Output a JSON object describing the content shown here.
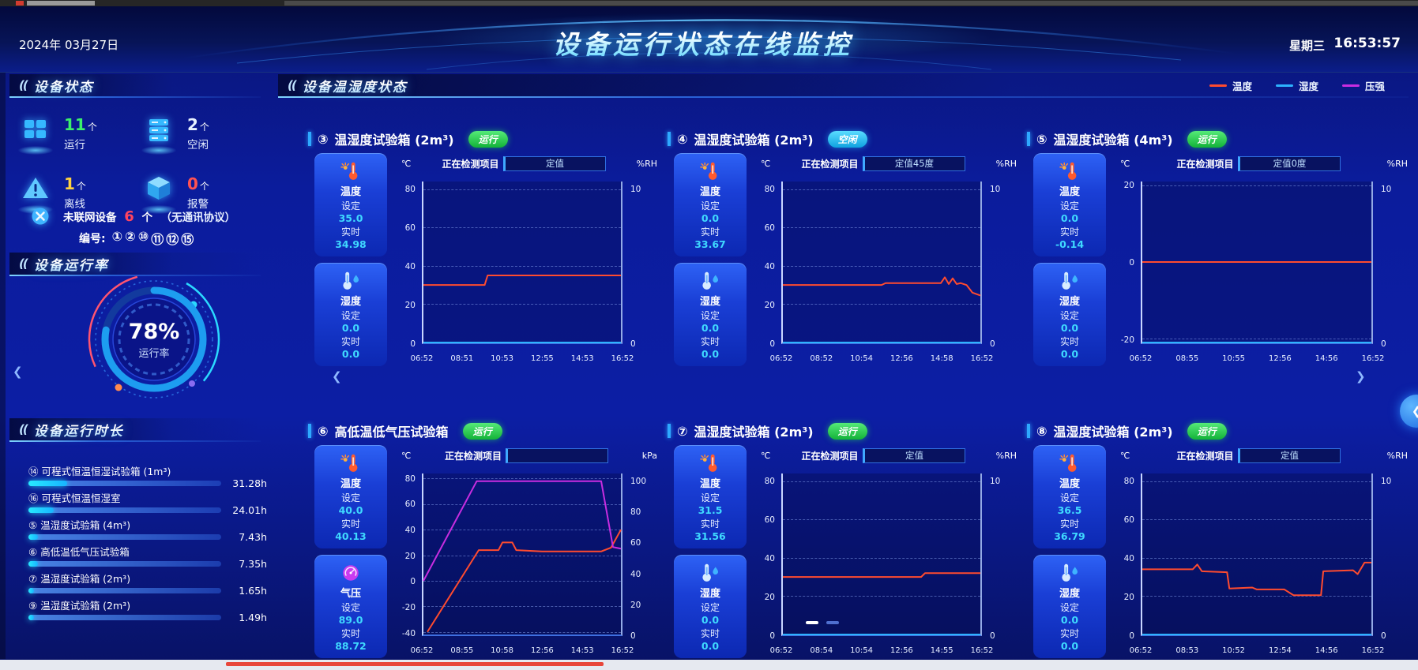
{
  "ui": {
    "section_deco": "((",
    "set_label": "设定",
    "rt_label": "实时",
    "detect_label": "正在检测项目"
  },
  "header": {
    "date": "2024年 03月27日",
    "title": "设备运行状态在线监控",
    "weekday": "星期三",
    "time": "16:53:57"
  },
  "legend": [
    {
      "label": "温度",
      "color": "#ff4b2f"
    },
    {
      "label": "湿度",
      "color": "#2db2ff"
    },
    {
      "label": "压强",
      "color": "#c82de0"
    }
  ],
  "nav": {
    "prev": "❮",
    "next": "❯"
  },
  "sidebar": {
    "status_title": "设备状态",
    "status_items": [
      {
        "icon": "grid-windows-icon",
        "count": "11",
        "unit": "个",
        "label": "运行",
        "color": "#3bf06a"
      },
      {
        "icon": "server-icon",
        "count": "2",
        "unit": "个",
        "label": "空闲",
        "color": "#e8f2ff"
      },
      {
        "icon": "warning-triangle-icon",
        "count": "1",
        "unit": "个",
        "label": "离线",
        "color": "#ffd23f"
      },
      {
        "icon": "cube-icon",
        "count": "0",
        "unit": "个",
        "label": "报警",
        "color": "#ff5252"
      }
    ],
    "offline_note": {
      "icon": "disconnect-icon",
      "prefix": "未联网设备",
      "count": "6",
      "suffix": "个",
      "paren": "（无通讯协议）"
    },
    "numbers_label": "编号:",
    "numbers": [
      "①",
      "②",
      "⑩",
      "⑪",
      "⑫",
      "⑮"
    ],
    "rate_title": "设备运行率",
    "gauge": {
      "percent": "78%",
      "label": "运行率"
    },
    "runtime_title": "设备运行时长",
    "runtime_items": [
      {
        "num": "⑭",
        "name": "可程式恒温恒湿试验箱 (1m³)",
        "hours": "31.28h",
        "fill": 20
      },
      {
        "num": "⑯",
        "name": "可程式恒温恒湿室",
        "hours": "24.01h",
        "fill": 13
      },
      {
        "num": "⑤",
        "name": "温湿度试验箱 (4m³)",
        "hours": "7.43h",
        "fill": 5
      },
      {
        "num": "⑥",
        "name": "高低温低气压试验箱",
        "hours": "7.35h",
        "fill": 5
      },
      {
        "num": "⑦",
        "name": "温湿度试验箱 (2m³)",
        "hours": "1.65h",
        "fill": 3
      },
      {
        "num": "⑨",
        "name": "温湿度试验箱 (2m³)",
        "hours": "1.49h",
        "fill": 3
      }
    ]
  },
  "main": {
    "title": "设备温湿度状态",
    "panels": [
      {
        "num": "③",
        "name": "温湿度试验箱 (2m³)",
        "badge": {
          "label": "运行",
          "type": "run"
        },
        "detect_value": "定值",
        "cards": [
          {
            "icon": "temp-icon",
            "label": "温度",
            "set": "35.0",
            "rt": "34.98"
          },
          {
            "icon": "humidity-icon",
            "label": "湿度",
            "set": "0.0",
            "rt": "0.0"
          }
        ],
        "chart": {
          "type": "line",
          "unit_left": "℃",
          "unit_right": "%RH",
          "ylim_left": [
            0,
            84
          ],
          "ylim_right": [
            0,
            10.5
          ],
          "left_ticks": [
            80,
            60,
            40,
            20,
            0
          ],
          "right_ticks": [
            10,
            0
          ],
          "x_labels": [
            "06:52",
            "08:51",
            "10:53",
            "12:55",
            "14:53",
            "16:52"
          ],
          "series": [
            {
              "name": "温度",
              "color": "#ff4b2f",
              "axis": "left",
              "points": [
                [
                  0,
                  30
                ],
                [
                  0.31,
                  30
                ],
                [
                  0.325,
                  35
                ],
                [
                  1,
                  35
                ]
              ]
            },
            {
              "name": "湿度",
              "color": "#2db2ff",
              "axis": "right",
              "points": [
                [
                  0,
                  0
                ],
                [
                  1,
                  0
                ]
              ]
            }
          ]
        }
      },
      {
        "num": "④",
        "name": "温湿度试验箱 (2m³)",
        "badge": {
          "label": "空闲",
          "type": "idle"
        },
        "detect_value": "定值45度",
        "cards": [
          {
            "icon": "temp-icon",
            "label": "温度",
            "set": "0.0",
            "rt": "33.67"
          },
          {
            "icon": "humidity-icon",
            "label": "湿度",
            "set": "0.0",
            "rt": "0.0"
          }
        ],
        "chart": {
          "type": "line",
          "unit_left": "℃",
          "unit_right": "%RH",
          "ylim_left": [
            0,
            84
          ],
          "ylim_right": [
            0,
            10.5
          ],
          "left_ticks": [
            80,
            60,
            40,
            20,
            0
          ],
          "right_ticks": [
            10,
            0
          ],
          "x_labels": [
            "06:52",
            "08:52",
            "10:54",
            "12:56",
            "14:58",
            "16:52"
          ],
          "series": [
            {
              "name": "温度",
              "color": "#ff4b2f",
              "axis": "left",
              "points": [
                [
                  0,
                  30
                ],
                [
                  0.5,
                  30
                ],
                [
                  0.52,
                  31
                ],
                [
                  0.8,
                  31
                ],
                [
                  0.82,
                  34
                ],
                [
                  0.84,
                  30.5
                ],
                [
                  0.86,
                  33.5
                ],
                [
                  0.88,
                  30.5
                ],
                [
                  0.9,
                  31
                ],
                [
                  0.93,
                  30
                ],
                [
                  0.96,
                  26
                ],
                [
                  1,
                  24.5
                ]
              ]
            },
            {
              "name": "湿度",
              "color": "#2db2ff",
              "axis": "right",
              "points": [
                [
                  0,
                  0
                ],
                [
                  1,
                  0
                ]
              ]
            }
          ]
        }
      },
      {
        "num": "⑤",
        "name": "温湿度试验箱 (4m³)",
        "badge": {
          "label": "运行",
          "type": "run"
        },
        "detect_value": "定值0度",
        "cards": [
          {
            "icon": "temp-icon",
            "label": "温度",
            "set": "0.0",
            "rt": "-0.14"
          },
          {
            "icon": "humidity-icon",
            "label": "湿度",
            "set": "0.0",
            "rt": "0.0"
          }
        ],
        "chart": {
          "type": "line",
          "unit_left": "℃",
          "unit_right": "%RH",
          "ylim_left": [
            -21,
            21
          ],
          "ylim_right": [
            0,
            10.5
          ],
          "left_ticks": [
            20,
            0,
            -20
          ],
          "right_ticks": [
            10,
            0
          ],
          "x_labels": [
            "06:52",
            "08:55",
            "10:55",
            "12:56",
            "14:56",
            "16:52"
          ],
          "series": [
            {
              "name": "温度",
              "color": "#ff4b2f",
              "axis": "left",
              "points": [
                [
                  0,
                  0
                ],
                [
                  1,
                  0
                ]
              ]
            },
            {
              "name": "湿度",
              "color": "#2db2ff",
              "axis": "right",
              "points": [
                [
                  0,
                  0
                ],
                [
                  1,
                  0
                ]
              ]
            }
          ]
        }
      },
      {
        "num": "⑥",
        "name": "高低温低气压试验箱",
        "badge": {
          "label": "运行",
          "type": "run"
        },
        "detect_value": "",
        "cards": [
          {
            "icon": "temp-icon",
            "label": "温度",
            "set": "40.0",
            "rt": "40.13"
          },
          {
            "icon": "pressure-icon",
            "label": "气压",
            "set": "89.0",
            "rt": "88.72"
          }
        ],
        "chart": {
          "type": "line",
          "unit_left": "℃",
          "unit_right": "kPa",
          "ylim_left": [
            -42,
            84
          ],
          "ylim_right": [
            0,
            105
          ],
          "left_ticks": [
            80,
            60,
            40,
            20,
            0,
            -20,
            -40
          ],
          "right_ticks": [
            100,
            80,
            60,
            40,
            20,
            0
          ],
          "x_labels": [
            "06:52",
            "08:55",
            "10:58",
            "12:56",
            "14:53",
            "16:52"
          ],
          "series": [
            {
              "name": "温度",
              "color": "#ff4b2f",
              "axis": "left",
              "points": [
                [
                  0.02,
                  -40
                ],
                [
                  0.28,
                  24
                ],
                [
                  0.38,
                  24
                ],
                [
                  0.4,
                  30
                ],
                [
                  0.45,
                  30
                ],
                [
                  0.47,
                  24
                ],
                [
                  0.6,
                  23
                ],
                [
                  0.9,
                  23
                ],
                [
                  0.95,
                  26
                ],
                [
                  1,
                  40
                ]
              ]
            },
            {
              "name": "压强",
              "color": "#c82de0",
              "axis": "right",
              "points": [
                [
                  0,
                  35
                ],
                [
                  0.27,
                  100
                ],
                [
                  0.9,
                  100
                ],
                [
                  0.96,
                  57
                ],
                [
                  1,
                  56
                ]
              ]
            }
          ]
        }
      },
      {
        "num": "⑦",
        "name": "温湿度试验箱 (2m³)",
        "badge": {
          "label": "运行",
          "type": "run"
        },
        "detect_value": "定值",
        "cards": [
          {
            "icon": "temp-icon",
            "label": "温度",
            "set": "31.5",
            "rt": "31.56"
          },
          {
            "icon": "humidity-icon",
            "label": "湿度",
            "set": "0.0",
            "rt": "0.0"
          }
        ],
        "chart": {
          "type": "line",
          "unit_left": "℃",
          "unit_right": "%RH",
          "ylim_left": [
            0,
            84
          ],
          "ylim_right": [
            0,
            10.5
          ],
          "left_ticks": [
            80,
            60,
            40,
            20,
            0
          ],
          "right_ticks": [
            10,
            0
          ],
          "x_labels": [
            "06:52",
            "08:54",
            "10:54",
            "12:56",
            "14:55",
            "16:52"
          ],
          "series": [
            {
              "name": "温度",
              "color": "#ff4b2f",
              "axis": "left",
              "points": [
                [
                  0,
                  30
                ],
                [
                  0.7,
                  30
                ],
                [
                  0.72,
                  32
                ],
                [
                  1,
                  32
                ]
              ]
            },
            {
              "name": "湿度",
              "color": "#2db2ff",
              "axis": "right",
              "points": [
                [
                  0,
                  0
                ],
                [
                  1,
                  0
                ]
              ]
            }
          ]
        }
      },
      {
        "num": "⑧",
        "name": "温湿度试验箱 (2m³)",
        "badge": {
          "label": "运行",
          "type": "run"
        },
        "detect_value": "定值",
        "cards": [
          {
            "icon": "temp-icon",
            "label": "温度",
            "set": "36.5",
            "rt": "36.79"
          },
          {
            "icon": "humidity-icon",
            "label": "湿度",
            "set": "0.0",
            "rt": "0.0"
          }
        ],
        "chart": {
          "type": "line",
          "unit_left": "℃",
          "unit_right": "%RH",
          "ylim_left": [
            0,
            84
          ],
          "ylim_right": [
            0,
            10.5
          ],
          "left_ticks": [
            80,
            60,
            40,
            20,
            0
          ],
          "right_ticks": [
            10,
            0
          ],
          "x_labels": [
            "06:52",
            "08:53",
            "10:52",
            "12:54",
            "14:56",
            "16:52"
          ],
          "series": [
            {
              "name": "温度",
              "color": "#ff4b2f",
              "axis": "left",
              "points": [
                [
                  0,
                  34
                ],
                [
                  0.22,
                  34
                ],
                [
                  0.24,
                  36.5
                ],
                [
                  0.26,
                  33
                ],
                [
                  0.37,
                  32.5
                ],
                [
                  0.38,
                  24
                ],
                [
                  0.48,
                  24.5
                ],
                [
                  0.5,
                  23.5
                ],
                [
                  0.62,
                  23.5
                ],
                [
                  0.66,
                  20.5
                ],
                [
                  0.78,
                  20.5
                ],
                [
                  0.79,
                  33
                ],
                [
                  0.92,
                  33.5
                ],
                [
                  0.94,
                  31.5
                ],
                [
                  0.97,
                  37.5
                ],
                [
                  1,
                  37.5
                ]
              ]
            },
            {
              "name": "湿度",
              "color": "#2db2ff",
              "axis": "right",
              "points": [
                [
                  0,
                  0
                ],
                [
                  1,
                  0
                ]
              ]
            }
          ]
        }
      }
    ]
  }
}
